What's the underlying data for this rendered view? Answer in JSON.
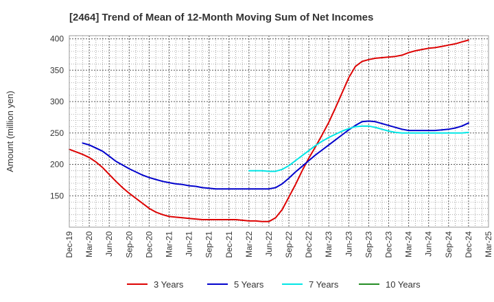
{
  "chart_data": {
    "type": "line",
    "title": "[2464]  Trend of Mean of 12-Month Moving Sum of Net Incomes",
    "xlabel": "",
    "ylabel": "Amount (million yen)",
    "ylim": [
      100,
      405
    ],
    "yticks": [
      150,
      200,
      250,
      300,
      350,
      400
    ],
    "x_ticks": [
      "Dec-19",
      "Mar-20",
      "Jun-20",
      "Sep-20",
      "Dec-20",
      "Mar-21",
      "Jun-21",
      "Sep-21",
      "Dec-21",
      "Mar-22",
      "Jun-22",
      "Sep-22",
      "Dec-22",
      "Mar-23",
      "Jun-23",
      "Sep-23",
      "Dec-23",
      "Mar-24",
      "Jun-24",
      "Sep-24",
      "Dec-24",
      "Mar-25"
    ],
    "grid": true,
    "legend_position": "bottom",
    "series": [
      {
        "name": "3 Years",
        "color": "#dd0000",
        "points": [
          [
            "Dec-19",
            224
          ],
          [
            "Jan-20",
            220
          ],
          [
            "Feb-20",
            216
          ],
          [
            "Mar-20",
            211
          ],
          [
            "Apr-20",
            204
          ],
          [
            "May-20",
            195
          ],
          [
            "Jun-20",
            184
          ],
          [
            "Jul-20",
            173
          ],
          [
            "Aug-20",
            163
          ],
          [
            "Sep-20",
            154
          ],
          [
            "Oct-20",
            146
          ],
          [
            "Nov-20",
            138
          ],
          [
            "Dec-20",
            130
          ],
          [
            "Jan-21",
            124
          ],
          [
            "Feb-21",
            120
          ],
          [
            "Mar-21",
            117
          ],
          [
            "Apr-21",
            116
          ],
          [
            "May-21",
            115
          ],
          [
            "Jun-21",
            114
          ],
          [
            "Jul-21",
            113
          ],
          [
            "Aug-21",
            112
          ],
          [
            "Sep-21",
            112
          ],
          [
            "Oct-21",
            112
          ],
          [
            "Nov-21",
            112
          ],
          [
            "Dec-21",
            112
          ],
          [
            "Jan-22",
            112
          ],
          [
            "Feb-22",
            111
          ],
          [
            "Mar-22",
            110
          ],
          [
            "Apr-22",
            110
          ],
          [
            "May-22",
            109
          ],
          [
            "Jun-22",
            109
          ],
          [
            "Jul-22",
            115
          ],
          [
            "Aug-22",
            128
          ],
          [
            "Sep-22",
            148
          ],
          [
            "Oct-22",
            168
          ],
          [
            "Nov-22",
            190
          ],
          [
            "Dec-22",
            210
          ],
          [
            "Jan-23",
            228
          ],
          [
            "Feb-23",
            247
          ],
          [
            "Mar-23",
            267
          ],
          [
            "Apr-23",
            290
          ],
          [
            "May-23",
            314
          ],
          [
            "Jun-23",
            338
          ],
          [
            "Jul-23",
            356
          ],
          [
            "Aug-23",
            364
          ],
          [
            "Sep-23",
            367
          ],
          [
            "Oct-23",
            369
          ],
          [
            "Nov-23",
            370
          ],
          [
            "Dec-23",
            371
          ],
          [
            "Jan-24",
            372
          ],
          [
            "Feb-24",
            374
          ],
          [
            "Mar-24",
            378
          ],
          [
            "Apr-24",
            381
          ],
          [
            "May-24",
            383
          ],
          [
            "Jun-24",
            385
          ],
          [
            "Jul-24",
            386
          ],
          [
            "Aug-24",
            388
          ],
          [
            "Sep-24",
            390
          ],
          [
            "Oct-24",
            392
          ],
          [
            "Nov-24",
            395
          ],
          [
            "Dec-24",
            398
          ]
        ]
      },
      {
        "name": "5 Years",
        "color": "#0000cc",
        "points": [
          [
            "Feb-20",
            234
          ],
          [
            "Mar-20",
            231
          ],
          [
            "Apr-20",
            226
          ],
          [
            "May-20",
            221
          ],
          [
            "Jun-20",
            213
          ],
          [
            "Jul-20",
            205
          ],
          [
            "Aug-20",
            199
          ],
          [
            "Sep-20",
            193
          ],
          [
            "Oct-20",
            188
          ],
          [
            "Nov-20",
            183
          ],
          [
            "Dec-20",
            179
          ],
          [
            "Jan-21",
            176
          ],
          [
            "Feb-21",
            173
          ],
          [
            "Mar-21",
            171
          ],
          [
            "Apr-21",
            169
          ],
          [
            "May-21",
            168
          ],
          [
            "Jun-21",
            166
          ],
          [
            "Jul-21",
            165
          ],
          [
            "Aug-21",
            163
          ],
          [
            "Sep-21",
            162
          ],
          [
            "Oct-21",
            161
          ],
          [
            "Nov-21",
            161
          ],
          [
            "Dec-21",
            161
          ],
          [
            "Jan-22",
            161
          ],
          [
            "Feb-22",
            161
          ],
          [
            "Mar-22",
            161
          ],
          [
            "Apr-22",
            161
          ],
          [
            "May-22",
            161
          ],
          [
            "Jun-22",
            161
          ],
          [
            "Jul-22",
            163
          ],
          [
            "Aug-22",
            169
          ],
          [
            "Sep-22",
            178
          ],
          [
            "Oct-22",
            188
          ],
          [
            "Nov-22",
            197
          ],
          [
            "Dec-22",
            206
          ],
          [
            "Jan-23",
            215
          ],
          [
            "Feb-23",
            223
          ],
          [
            "Mar-23",
            231
          ],
          [
            "Apr-23",
            239
          ],
          [
            "May-23",
            247
          ],
          [
            "Jun-23",
            255
          ],
          [
            "Jul-23",
            262
          ],
          [
            "Aug-23",
            268
          ],
          [
            "Sep-23",
            269
          ],
          [
            "Oct-23",
            268
          ],
          [
            "Nov-23",
            265
          ],
          [
            "Dec-23",
            262
          ],
          [
            "Jan-24",
            259
          ],
          [
            "Feb-24",
            256
          ],
          [
            "Mar-24",
            254
          ],
          [
            "Apr-24",
            254
          ],
          [
            "May-24",
            254
          ],
          [
            "Jun-24",
            254
          ],
          [
            "Jul-24",
            254
          ],
          [
            "Aug-24",
            255
          ],
          [
            "Sep-24",
            256
          ],
          [
            "Oct-24",
            258
          ],
          [
            "Nov-24",
            261
          ],
          [
            "Dec-24",
            266
          ]
        ]
      },
      {
        "name": "7 Years",
        "color": "#00e5e5",
        "points": [
          [
            "Mar-22",
            190
          ],
          [
            "Apr-22",
            190
          ],
          [
            "May-22",
            190
          ],
          [
            "Jun-22",
            189
          ],
          [
            "Jul-22",
            189
          ],
          [
            "Aug-22",
            192
          ],
          [
            "Sep-22",
            198
          ],
          [
            "Oct-22",
            206
          ],
          [
            "Nov-22",
            214
          ],
          [
            "Dec-22",
            222
          ],
          [
            "Jan-23",
            230
          ],
          [
            "Feb-23",
            237
          ],
          [
            "Mar-23",
            243
          ],
          [
            "Apr-23",
            248
          ],
          [
            "May-23",
            253
          ],
          [
            "Jun-23",
            257
          ],
          [
            "Jul-23",
            260
          ],
          [
            "Aug-23",
            261
          ],
          [
            "Sep-23",
            261
          ],
          [
            "Oct-23",
            259
          ],
          [
            "Nov-23",
            256
          ],
          [
            "Dec-23",
            253
          ],
          [
            "Jan-24",
            251
          ],
          [
            "Feb-24",
            250
          ],
          [
            "Mar-24",
            250
          ],
          [
            "Apr-24",
            250
          ],
          [
            "May-24",
            250
          ],
          [
            "Jun-24",
            250
          ],
          [
            "Jul-24",
            250
          ],
          [
            "Aug-24",
            250
          ],
          [
            "Sep-24",
            250
          ],
          [
            "Oct-24",
            250
          ],
          [
            "Nov-24",
            250
          ],
          [
            "Dec-24",
            251
          ]
        ]
      },
      {
        "name": "10 Years",
        "color": "#228b22",
        "points": []
      }
    ]
  }
}
